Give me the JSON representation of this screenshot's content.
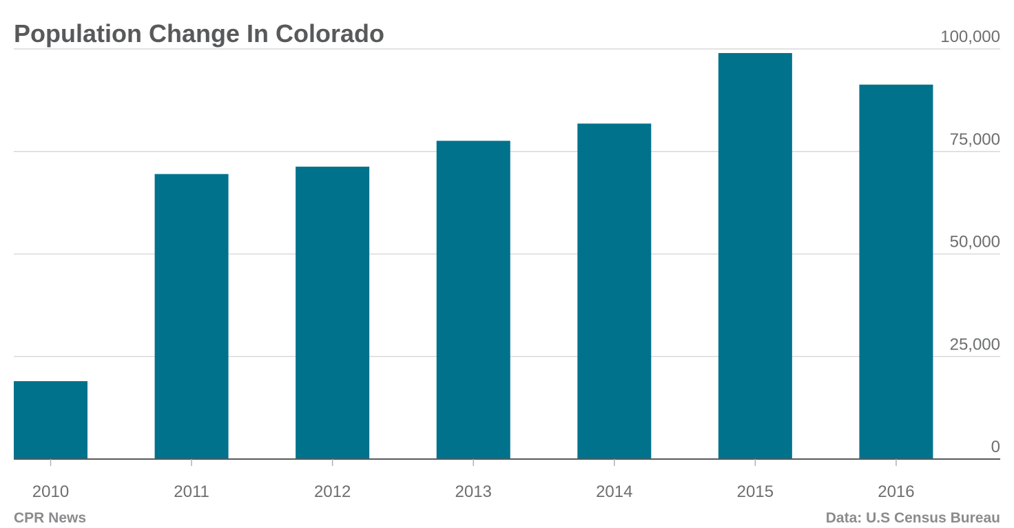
{
  "chart_data": {
    "type": "bar",
    "title": "Population Change In Colorado",
    "categories": [
      "2010",
      "2011",
      "2012",
      "2013",
      "2014",
      "2015",
      "2016"
    ],
    "values": [
      19000,
      69500,
      71300,
      77600,
      81800,
      99000,
      91300
    ],
    "ylim": [
      0,
      100000
    ],
    "yticks": [
      0,
      25000,
      50000,
      75000,
      100000
    ],
    "ytick_labels": [
      "0",
      "25,000",
      "50,000",
      "75,000",
      "100,000"
    ],
    "y_axis_side": "right",
    "grid": true,
    "legend": "none",
    "bar_color": "#00728c",
    "gridline_color": "#d9d9d9",
    "axis_color": "#58595b"
  },
  "footer": {
    "source_left": "CPR News",
    "source_right": "Data: U.S Census Bureau"
  }
}
